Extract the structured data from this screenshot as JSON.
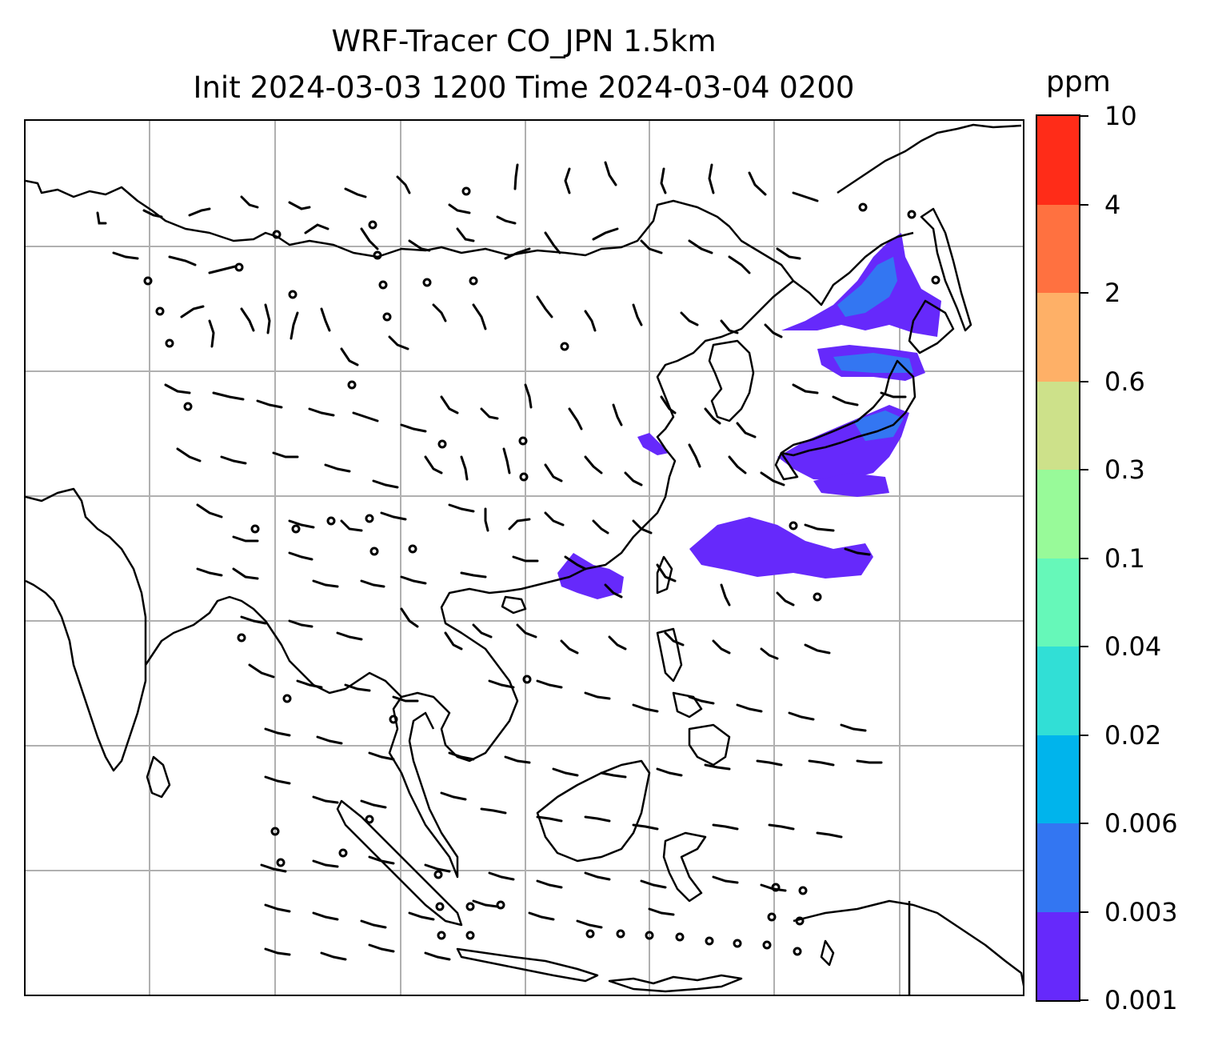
{
  "title": {
    "line1": "WRF-Tracer CO_JPN 1.5km",
    "line2": "Init 2024-03-03 1200 Time 2024-03-04 0200"
  },
  "colorbar": {
    "unit": "ppm",
    "levels": [
      "0.001",
      "0.003",
      "0.006",
      "0.02",
      "0.04",
      "0.1",
      "0.3",
      "0.6",
      "2",
      "4",
      "10"
    ],
    "colors": [
      "#6629fb",
      "#3376f2",
      "#00b4ec",
      "#31dfd6",
      "#66f8b9",
      "#98fa99",
      "#cde18a",
      "#feb067",
      "#ff7140",
      "#ff2c18"
    ]
  },
  "map": {
    "coastline_color": "#000000",
    "gridline_color": "#b0b0b0",
    "wind_barb_color": "#000000"
  }
}
